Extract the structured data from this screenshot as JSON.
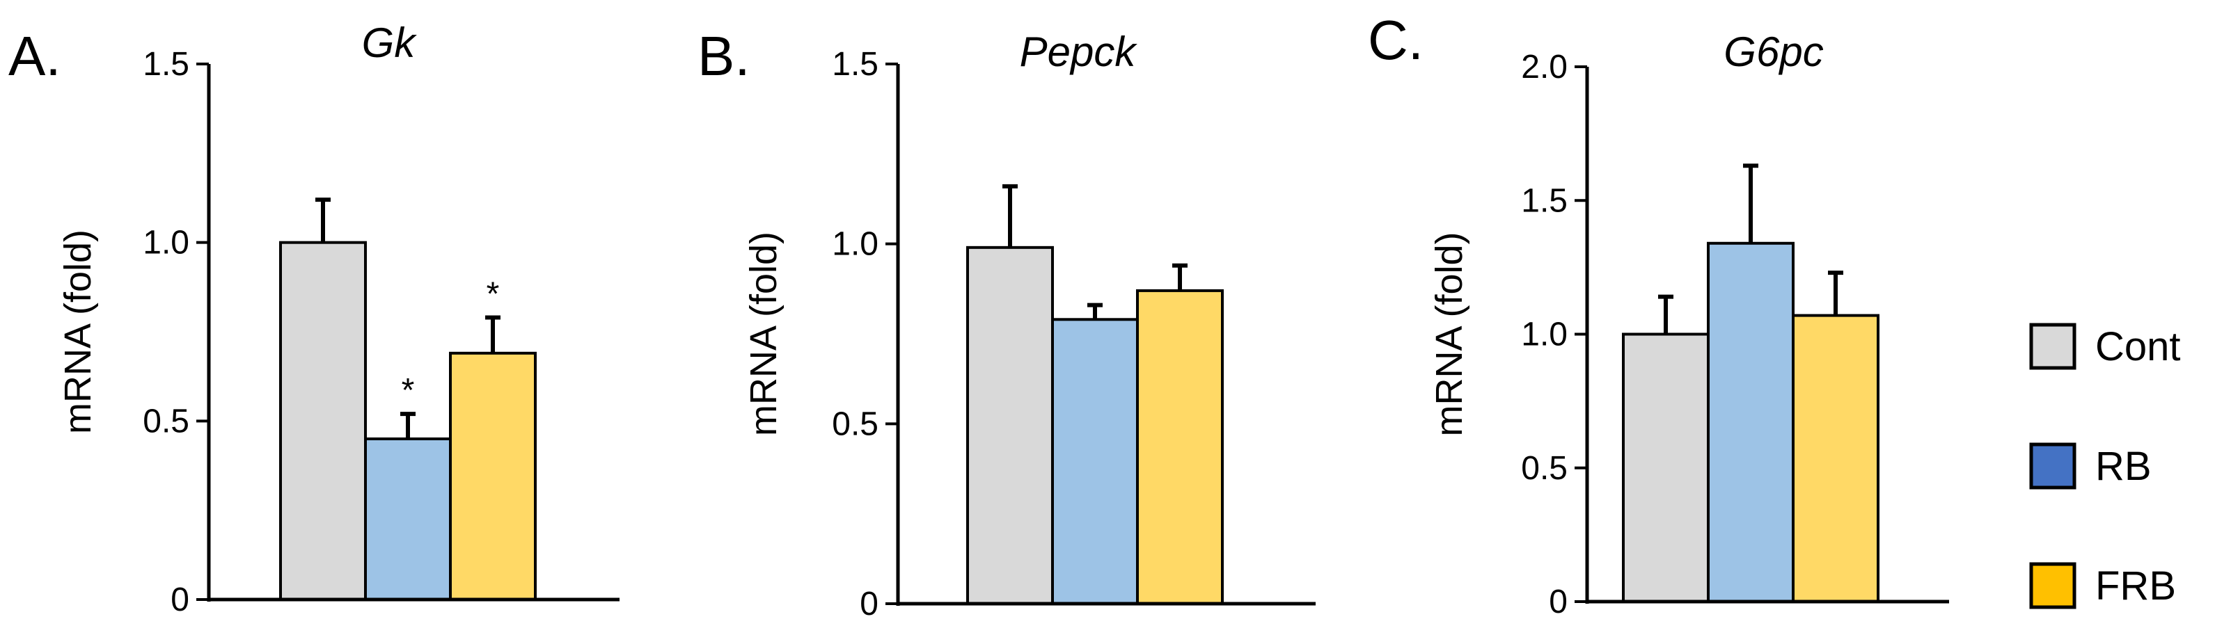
{
  "chart_data": [
    {
      "type": "bar",
      "panel": "A.",
      "title": "Gk",
      "xlabel": "",
      "ylabel": "mRNA (fold)",
      "ylim": [
        0,
        1.5
      ],
      "yticks": [
        "0",
        "0.5",
        "1.0",
        "1.5"
      ],
      "ytick_values": [
        0,
        0.5,
        1.0,
        1.5
      ],
      "categories": [
        "Cont",
        "RB",
        "FRB"
      ],
      "values": [
        1.0,
        0.45,
        0.69
      ],
      "errors": [
        0.12,
        0.07,
        0.1
      ],
      "annotations": [
        "",
        "*",
        "*"
      ]
    },
    {
      "type": "bar",
      "panel": "B.",
      "title": "Pepck",
      "xlabel": "",
      "ylabel": "mRNA (fold)",
      "ylim": [
        0,
        1.5
      ],
      "yticks": [
        "0",
        "0.5",
        "1.0",
        "1.5"
      ],
      "ytick_values": [
        0,
        0.5,
        1.0,
        1.5
      ],
      "categories": [
        "Cont",
        "RB",
        "FRB"
      ],
      "values": [
        0.99,
        0.79,
        0.87
      ],
      "errors": [
        0.17,
        0.04,
        0.07
      ],
      "annotations": [
        "",
        "",
        ""
      ]
    },
    {
      "type": "bar",
      "panel": "C.",
      "title": "G6pc",
      "xlabel": "",
      "ylabel": "mRNA (fold)",
      "ylim": [
        0,
        2.0
      ],
      "yticks": [
        "0",
        "0.5",
        "1.0",
        "1.5",
        "2.0"
      ],
      "ytick_values": [
        0,
        0.5,
        1.0,
        1.5,
        2.0
      ],
      "categories": [
        "Cont",
        "RB",
        "FRB"
      ],
      "values": [
        1.0,
        1.34,
        1.07
      ],
      "errors": [
        0.14,
        0.29,
        0.16
      ],
      "annotations": [
        "",
        "",
        ""
      ]
    }
  ],
  "legend": {
    "placement": "right",
    "items": [
      {
        "label": "Cont",
        "color": "#d9d9d9"
      },
      {
        "label": "RB",
        "color": "#4472c4"
      },
      {
        "label": "FRB",
        "color": "#ffc000"
      }
    ]
  },
  "bar_colors": [
    "#d9d9d9",
    "#9dc3e6",
    "#ffd966"
  ]
}
